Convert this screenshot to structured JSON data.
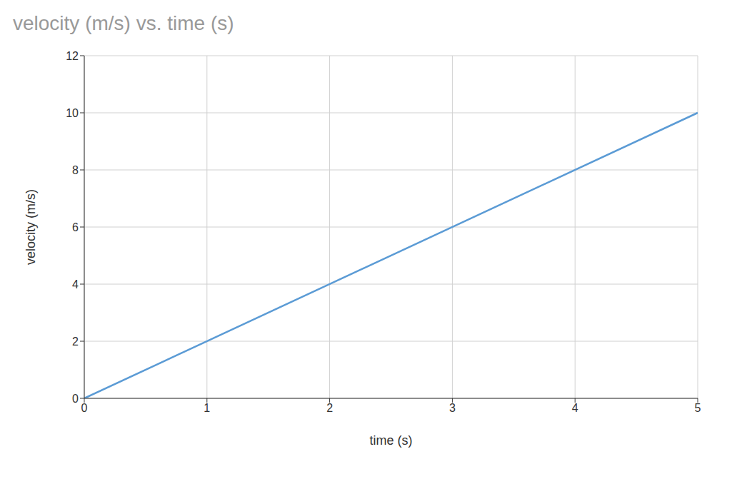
{
  "chart_data": {
    "type": "line",
    "title": "velocity (m/s) vs. time (s)",
    "xlabel": "time (s)",
    "ylabel": "velocity (m/s)",
    "x": [
      0,
      5
    ],
    "values": [
      0,
      10
    ],
    "color": "#5b9bd5",
    "xlim": [
      0,
      5
    ],
    "ylim": [
      0,
      12
    ],
    "xticks": [
      0,
      1,
      2,
      3,
      4,
      5
    ],
    "yticks": [
      0,
      2,
      4,
      6,
      8,
      10,
      12
    ],
    "grid": true
  }
}
